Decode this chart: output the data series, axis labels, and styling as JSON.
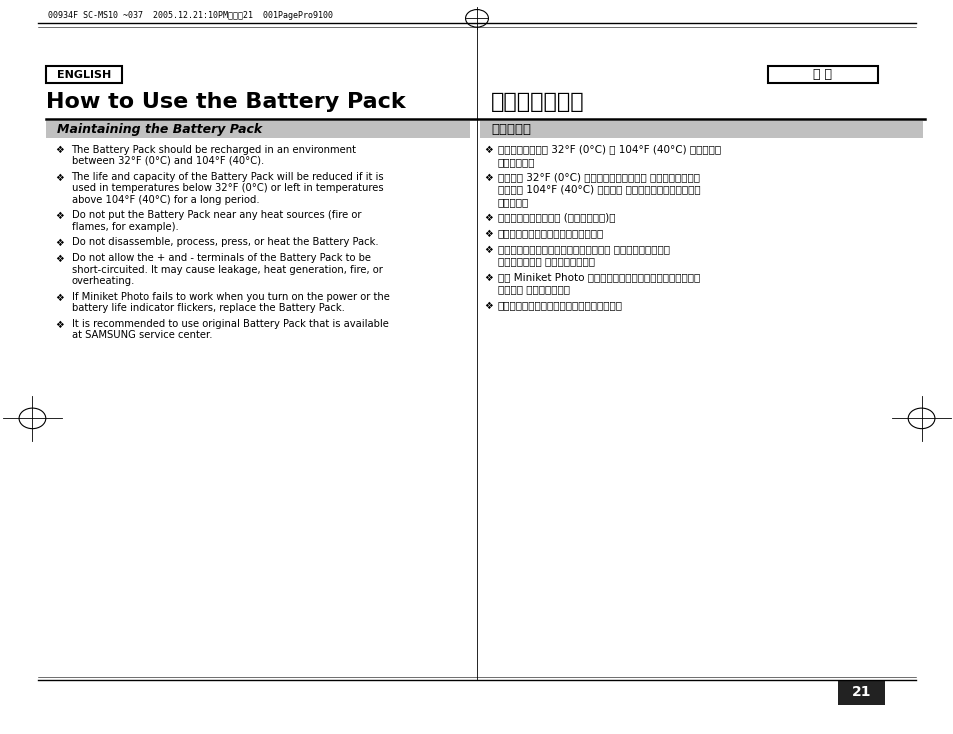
{
  "bg_color": "#ffffff",
  "header_text": "00934F SC-MS10 ~037  2005.12.21:10PM페이직21  001PagePro9100",
  "english_box_label": "ENGLISH",
  "taiwan_box_label": "臺 灣",
  "title_english": "How to Use the Battery Pack",
  "title_chinese": "如何使用電池組",
  "section_english": "Maintaining the Battery Pack",
  "section_chinese": "維護電池組",
  "section_bg": "#c0c0c0",
  "bullets_english": [
    [
      "The Battery Pack should be recharged in an environment",
      "between 32°F (0°C) and 104°F (40°C)."
    ],
    [
      "The life and capacity of the Battery Pack will be reduced if it is",
      "used in temperatures below 32°F (0°C) or left in temperatures",
      "above 104°F (40°C) for a long period."
    ],
    [
      "Do not put the Battery Pack near any heat sources (fire or",
      "flames, for example)."
    ],
    [
      "Do not disassemble, process, press, or heat the Battery Pack."
    ],
    [
      "Do not allow the + and - terminals of the Battery Pack to be",
      "short-circuited. It may cause leakage, heat generation, fire, or",
      "overheating."
    ],
    [
      "If Miniket Photo fails to work when you turn on the power or the",
      "battery life indicator flickers, replace the Battery Pack."
    ],
    [
      "It is recommended to use original Battery Pack that is available",
      "at SAMSUNG service center."
    ]
  ],
  "bullets_chinese": [
    [
      "電池組必須在介於 32°F (0°C) 和 104°F (40°C) 的環境溫度",
      "下重新充電。"
    ],
    [
      "若在低於 32°F (0°C) 的溫度下使用電池組， 或者電池組長時間",
      "處於高於 104°F (40°C) 的溫度， 電池組的使用壽命和電容量",
      "將會降低。"
    ],
    [
      "請勿讓電池組接近熱源 (例如火或火焰)。"
    ],
    [
      "請勿拆開、處理、擠壓或加熱電池組。"
    ],
    [
      "請勿讓電池組的正極和負極端形成短路。 這可能導致電池組漏",
      "液、發出熱量， 引起火災或過熱。"
    ],
    [
      "如果 Miniket Photo 在您開啟電源時無法操作或電池壽命指示",
      "器閃燈， 請更換電池組。"
    ],
    [
      "建議使用從三星服務中心購買的原廠電池組。"
    ]
  ],
  "page_number": "21"
}
